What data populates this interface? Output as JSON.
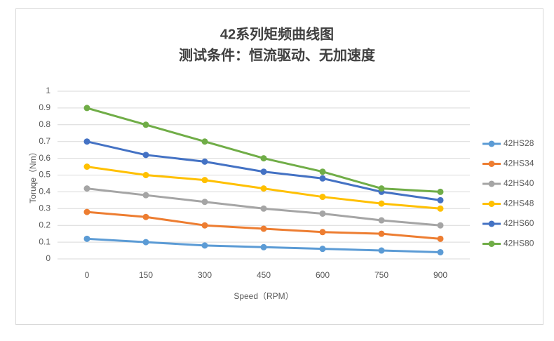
{
  "chart_data": {
    "type": "line",
    "title": "42系列矩频曲线图",
    "subtitle": "测试条件：恒流驱动、无加速度",
    "x_label": "Speed（RPM）",
    "y_label": "Toruqe（Nm）",
    "categories": [
      "0",
      "150",
      "300",
      "450",
      "600",
      "750",
      "900"
    ],
    "ylim": [
      0,
      1
    ],
    "yticks": [
      0,
      0.1,
      0.2,
      0.3,
      0.4,
      0.5,
      0.6,
      0.7,
      0.8,
      0.9,
      1
    ],
    "grid": true,
    "legend": "right",
    "series": [
      {
        "name": "42HS28",
        "color": "#5b9bd5",
        "values": [
          0.12,
          0.1,
          0.08,
          0.07,
          0.06,
          0.05,
          0.04
        ]
      },
      {
        "name": "42HS34",
        "color": "#ed7d31",
        "values": [
          0.28,
          0.25,
          0.2,
          0.18,
          0.16,
          0.15,
          0.12
        ]
      },
      {
        "name": "42HS40",
        "color": "#a5a5a5",
        "values": [
          0.42,
          0.38,
          0.34,
          0.3,
          0.27,
          0.23,
          0.2
        ]
      },
      {
        "name": "42HS48",
        "color": "#ffc000",
        "values": [
          0.55,
          0.5,
          0.47,
          0.42,
          0.37,
          0.33,
          0.3
        ]
      },
      {
        "name": "42HS60",
        "color": "#4472c4",
        "values": [
          0.7,
          0.62,
          0.58,
          0.52,
          0.48,
          0.4,
          0.35
        ]
      },
      {
        "name": "42HS80",
        "color": "#70ad47",
        "values": [
          0.9,
          0.8,
          0.7,
          0.6,
          0.52,
          0.42,
          0.4
        ]
      }
    ]
  }
}
